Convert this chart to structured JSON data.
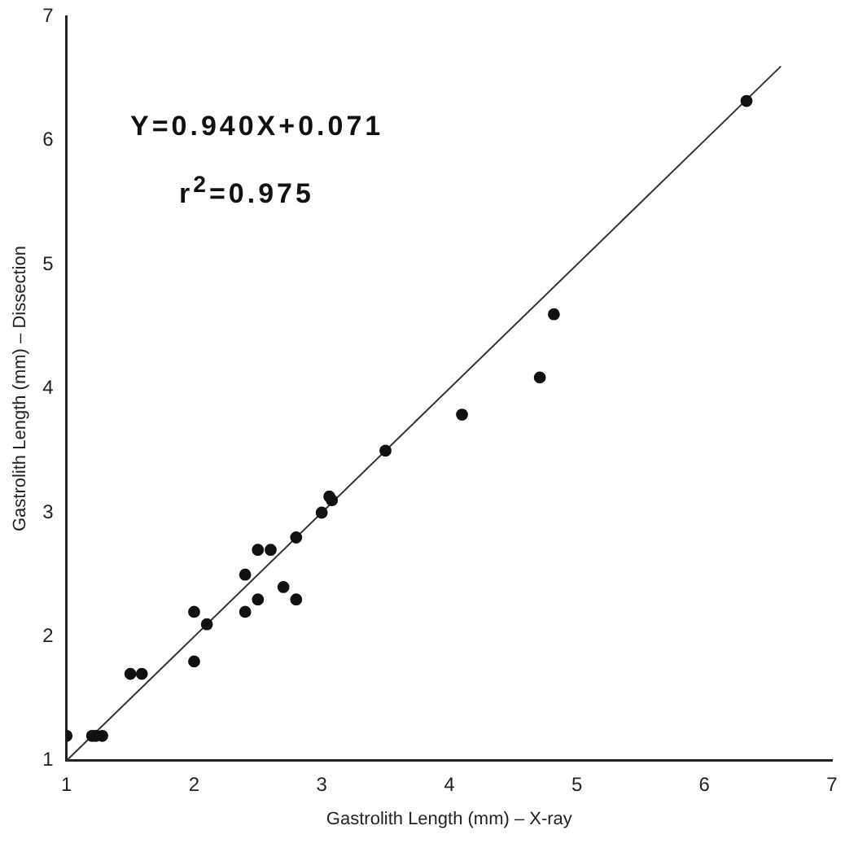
{
  "chart_data": {
    "type": "scatter",
    "xlabel": "Gastrolith Length (mm) – X-ray",
    "ylabel": "Gastrolith Length (mm) – Dissection",
    "annotations": [
      "Y=0.940X+0.071",
      "r$^{2}$=0.975"
    ],
    "xlim": [
      1,
      7
    ],
    "ylim": [
      1,
      7
    ],
    "xticks": [
      1,
      2,
      3,
      4,
      5,
      6,
      7
    ],
    "yticks": [
      1,
      2,
      3,
      4,
      5,
      6,
      7
    ],
    "grid": false,
    "legend": false,
    "marker": "circle",
    "series": [
      {
        "color": "#111111",
        "x": [
          1.0,
          1.2,
          1.23,
          1.28,
          1.5,
          1.59,
          2.0,
          2.0,
          2.1,
          2.4,
          2.4,
          2.5,
          2.6,
          2.5,
          2.7,
          2.8,
          2.8,
          3.0,
          3.06,
          3.08,
          3.5,
          4.1,
          4.71,
          4.82,
          6.33
        ],
        "values": [
          1.2,
          1.2,
          1.2,
          1.2,
          1.7,
          1.7,
          1.8,
          2.2,
          2.1,
          2.2,
          2.5,
          2.7,
          2.7,
          2.3,
          2.4,
          2.3,
          2.8,
          3.0,
          3.13,
          3.1,
          3.5,
          3.79,
          4.09,
          4.6,
          6.32
        ]
      },
      {
        "type": "line",
        "color": "#333333",
        "marker": "none",
        "x": [
          1.0,
          6.6
        ],
        "values": [
          1.0,
          6.6
        ]
      }
    ]
  }
}
